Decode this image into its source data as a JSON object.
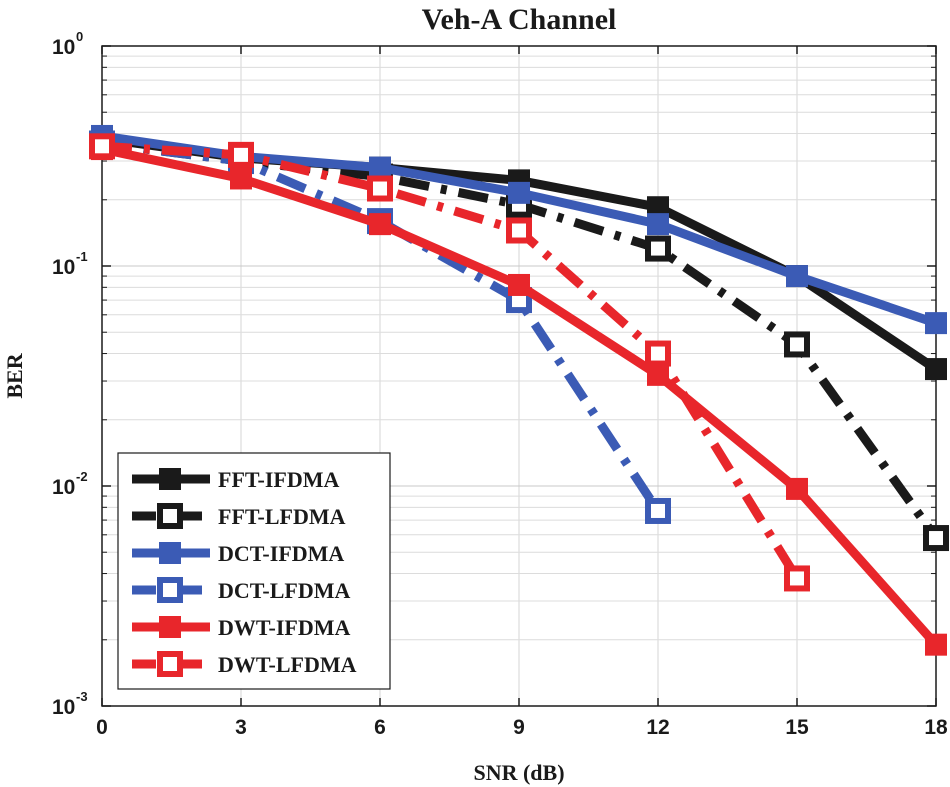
{
  "chart_data": {
    "type": "line",
    "title": "Veh-A Channel",
    "xlabel": "SNR (dB)",
    "ylabel": "BER",
    "yscale": "log",
    "x": [
      0,
      3,
      6,
      9,
      12,
      15,
      18
    ],
    "xlim": [
      0,
      18
    ],
    "ylim": [
      0.001,
      1
    ],
    "xticks": [
      "0",
      "3",
      "6",
      "9",
      "12",
      "15",
      "18"
    ],
    "yticks": [
      {
        "value": 1,
        "base": "10",
        "exp": "0"
      },
      {
        "value": 0.1,
        "base": "10",
        "exp": "-1"
      },
      {
        "value": 0.01,
        "base": "10",
        "exp": "-2"
      },
      {
        "value": 0.001,
        "base": "10",
        "exp": "-3"
      }
    ],
    "grid": true,
    "legend_position": "bottom-left",
    "series": [
      {
        "name": "FFT-IFDMA",
        "color": "#1a1a1a",
        "style": "solid",
        "values": [
          0.38,
          0.31,
          0.28,
          0.245,
          0.185,
          0.09,
          0.034
        ]
      },
      {
        "name": "FFT-LFDMA",
        "color": "#1a1a1a",
        "style": "dashdot",
        "values": [
          0.36,
          0.3,
          0.255,
          0.19,
          0.12,
          0.044,
          0.0058
        ]
      },
      {
        "name": "DCT-IFDMA",
        "color": "#3b5bb5",
        "style": "solid",
        "values": [
          0.39,
          0.315,
          0.28,
          0.215,
          0.155,
          0.09,
          0.055
        ]
      },
      {
        "name": "DCT-LFDMA",
        "color": "#3b5bb5",
        "style": "dashdot",
        "values": [
          0.36,
          0.3,
          0.16,
          0.07,
          0.0077,
          null,
          null
        ]
      },
      {
        "name": "DWT-IFDMA",
        "color": "#e8262b",
        "style": "solid",
        "values": [
          0.34,
          0.25,
          0.155,
          0.082,
          0.032,
          0.0097,
          0.0019
        ]
      },
      {
        "name": "DWT-LFDMA",
        "color": "#e8262b",
        "style": "dashdot",
        "values": [
          0.35,
          0.32,
          0.225,
          0.145,
          0.04,
          0.0038,
          null
        ]
      }
    ]
  }
}
